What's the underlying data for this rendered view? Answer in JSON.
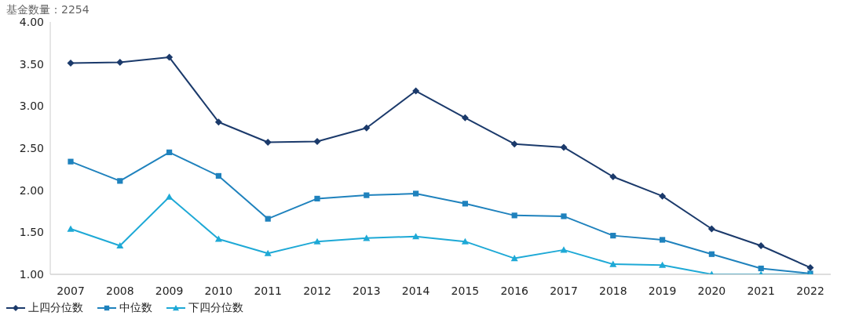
{
  "chart_data": {
    "type": "line",
    "title": "基金数量：2254",
    "categories": [
      "2007",
      "2008",
      "2009",
      "2010",
      "2011",
      "2012",
      "2013",
      "2014",
      "2015",
      "2016",
      "2017",
      "2018",
      "2019",
      "2020",
      "2021",
      "2022"
    ],
    "series": [
      {
        "name": "上四分位数",
        "color": "#1b3a6b",
        "marker": "diamond",
        "values": [
          3.51,
          3.52,
          3.58,
          2.81,
          2.57,
          2.58,
          2.74,
          3.18,
          2.86,
          2.55,
          2.51,
          2.16,
          1.93,
          1.54,
          1.34,
          1.08
        ]
      },
      {
        "name": "中位数",
        "color": "#1f82bd",
        "marker": "square",
        "values": [
          2.34,
          2.11,
          2.45,
          2.17,
          1.66,
          1.9,
          1.94,
          1.96,
          1.84,
          1.7,
          1.69,
          1.46,
          1.41,
          1.24,
          1.07,
          1.01
        ]
      },
      {
        "name": "下四分位数",
        "color": "#1ea9d6",
        "marker": "triangle",
        "values": [
          1.54,
          1.34,
          1.92,
          1.42,
          1.25,
          1.39,
          1.43,
          1.45,
          1.39,
          1.19,
          1.29,
          1.12,
          1.11,
          1.0,
          1.0,
          1.0
        ]
      }
    ],
    "ylim": [
      1,
      4
    ],
    "yticks": [
      {
        "value": 1,
        "label": "1.00"
      },
      {
        "value": 1.5,
        "label": "1.50"
      },
      {
        "value": 2,
        "label": "2.00"
      },
      {
        "value": 2.5,
        "label": "2.50"
      },
      {
        "value": 3,
        "label": "3.00"
      },
      {
        "value": 3.5,
        "label": "3.50"
      },
      {
        "value": 4,
        "label": "4.00"
      }
    ],
    "grid": false,
    "legend": "bottom left",
    "line_style": "solid"
  }
}
